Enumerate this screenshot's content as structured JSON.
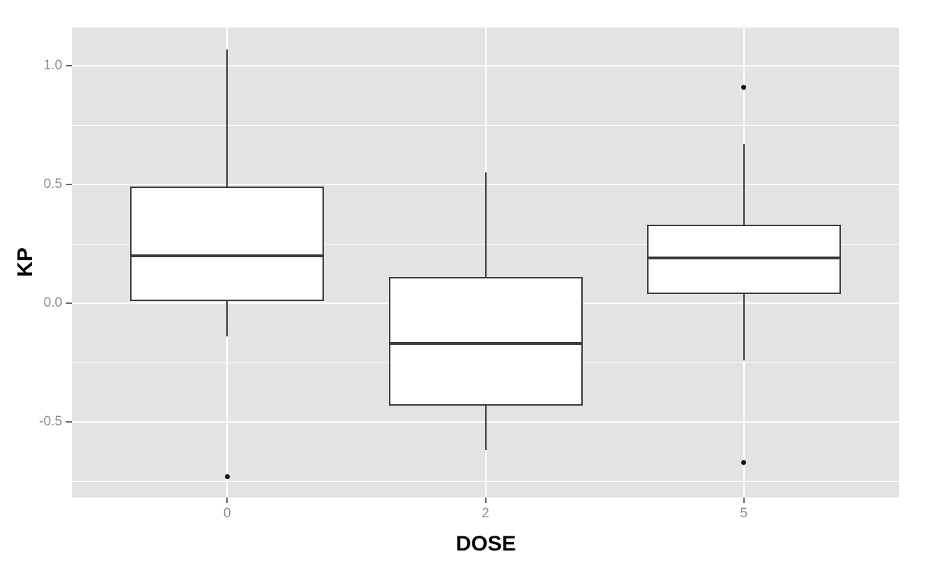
{
  "chart_data": {
    "type": "boxplot",
    "title": "",
    "xlabel": "DOSE",
    "ylabel": "KP",
    "categories": [
      "0",
      "2",
      "5"
    ],
    "ylim": [
      -0.818,
      1.161
    ],
    "yticks_major": [
      1.0,
      0.5,
      0.0,
      -0.5
    ],
    "ytick_labels": [
      "1.0",
      "0.5",
      "0.0",
      "-0.5"
    ],
    "yticks_minor": [
      0.75,
      0.25,
      -0.25,
      -0.75
    ],
    "grid": true,
    "legend_position": "none",
    "panel_theme": "ggplot2-grey",
    "series": [
      {
        "category": "0",
        "whisker_low": -0.14,
        "q1": 0.01,
        "median": 0.2,
        "q3": 0.49,
        "whisker_high": 1.07,
        "outliers": [
          -0.73
        ]
      },
      {
        "category": "2",
        "whisker_low": -0.62,
        "q1": -0.43,
        "median": -0.17,
        "q3": 0.11,
        "whisker_high": 0.55,
        "outliers": []
      },
      {
        "category": "5",
        "whisker_low": -0.24,
        "q1": 0.04,
        "median": 0.19,
        "q3": 0.33,
        "whisker_high": 0.67,
        "outliers": [
          0.91,
          -0.67
        ]
      }
    ],
    "colors": {
      "panel_bg": "#e3e3e3",
      "grid": "#ffffff",
      "box_fill": "#ffffff",
      "box_border": "#3a3a3a",
      "outlier": "#111111",
      "axis_text": "#8e8e8e",
      "axis_title": "#000000",
      "tick_mark": "#666666"
    }
  }
}
